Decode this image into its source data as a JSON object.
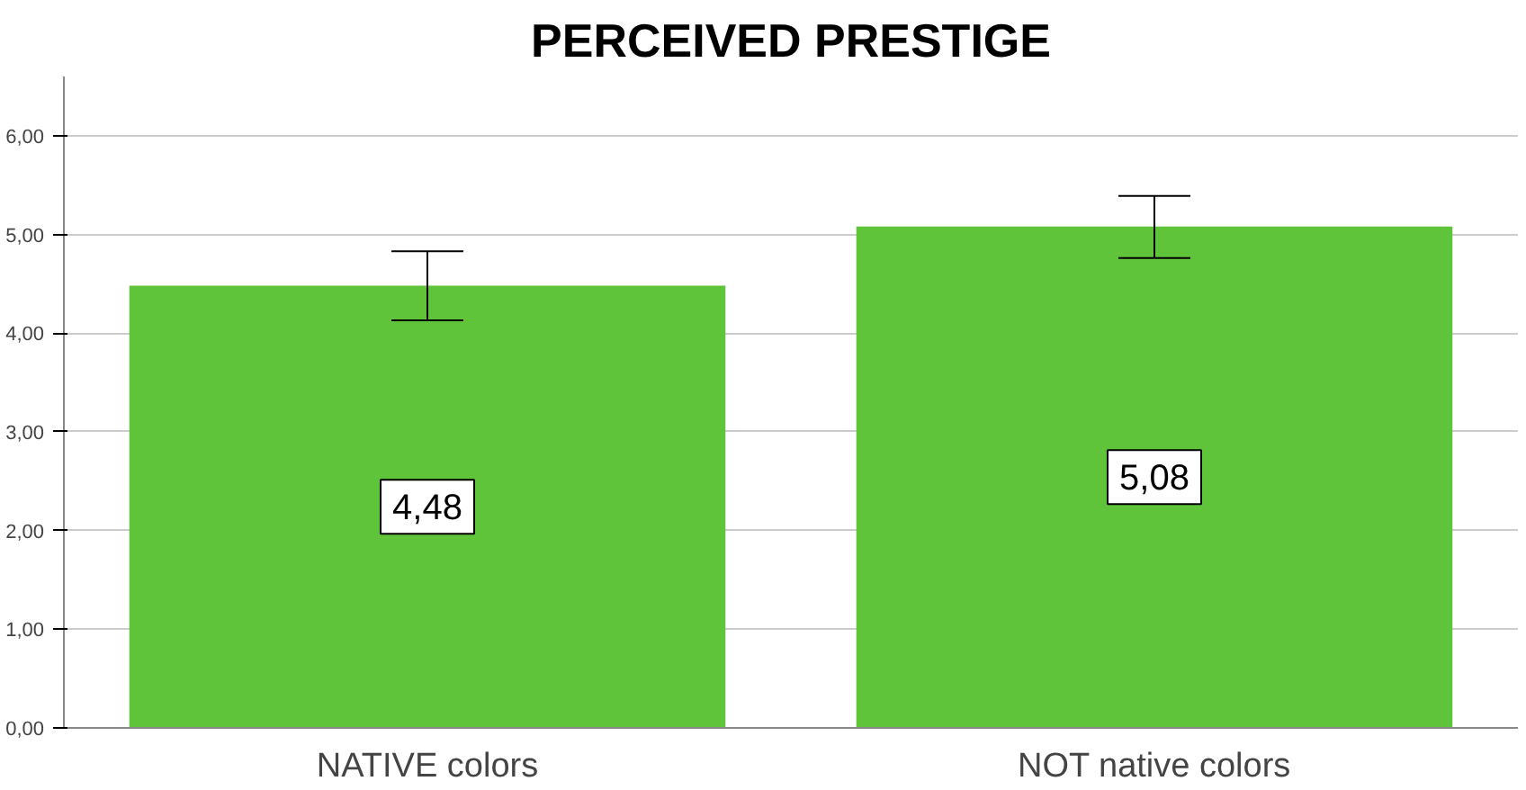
{
  "chart_data": {
    "type": "bar",
    "title": "PERCEIVED PRESTIGE",
    "categories": [
      "NATIVE colors",
      "NOT native colors"
    ],
    "values": [
      4.48,
      5.08
    ],
    "color": "#5fc43a",
    "value_labels": [
      "4,48",
      "5,08"
    ],
    "errors": [
      [
        4.13,
        4.83
      ],
      [
        4.76,
        5.39
      ]
    ],
    "ylim": [
      0,
      6.6
    ],
    "yticks": [
      {
        "value": 0,
        "label": "0,00"
      },
      {
        "value": 1,
        "label": "1,00"
      },
      {
        "value": 2,
        "label": "2,00"
      },
      {
        "value": 3,
        "label": "3,00"
      },
      {
        "value": 4,
        "label": "4,00"
      },
      {
        "value": 5,
        "label": "5,00"
      },
      {
        "value": 6,
        "label": "6,00"
      }
    ],
    "grid": "y"
  }
}
